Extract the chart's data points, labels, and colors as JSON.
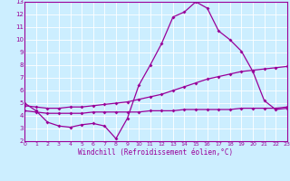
{
  "xlabel": "Windchill (Refroidissement éolien,°C)",
  "background_color": "#cceeff",
  "line_color": "#990099",
  "grid_color": "#ffffff",
  "xlim": [
    0,
    23
  ],
  "ylim": [
    2,
    13
  ],
  "xticks": [
    0,
    1,
    2,
    3,
    4,
    5,
    6,
    7,
    8,
    9,
    10,
    11,
    12,
    13,
    14,
    15,
    16,
    17,
    18,
    19,
    20,
    21,
    22,
    23
  ],
  "yticks": [
    2,
    3,
    4,
    5,
    6,
    7,
    8,
    9,
    10,
    11,
    12,
    13
  ],
  "series": {
    "line1_x": [
      0,
      1,
      2,
      3,
      4,
      5,
      6,
      7,
      8,
      9,
      10,
      11,
      12,
      13,
      14,
      15,
      16,
      17,
      18,
      19,
      20,
      21,
      22,
      23
    ],
    "line1_y": [
      5.0,
      4.4,
      3.5,
      3.2,
      3.1,
      3.3,
      3.4,
      3.2,
      2.2,
      3.8,
      6.4,
      8.0,
      9.7,
      11.8,
      12.2,
      13.0,
      12.5,
      10.7,
      10.0,
      9.1,
      7.5,
      5.2,
      4.5,
      4.6
    ],
    "line2_x": [
      0,
      1,
      2,
      3,
      4,
      5,
      6,
      7,
      8,
      9,
      10,
      11,
      12,
      13,
      14,
      15,
      16,
      17,
      18,
      19,
      20,
      21,
      22,
      23
    ],
    "line2_y": [
      4.8,
      4.7,
      4.6,
      4.6,
      4.7,
      4.7,
      4.8,
      4.9,
      5.0,
      5.1,
      5.3,
      5.5,
      5.7,
      6.0,
      6.3,
      6.6,
      6.9,
      7.1,
      7.3,
      7.5,
      7.6,
      7.7,
      7.8,
      7.9
    ],
    "line3_x": [
      0,
      1,
      2,
      3,
      4,
      5,
      6,
      7,
      8,
      9,
      10,
      11,
      12,
      13,
      14,
      15,
      16,
      17,
      18,
      19,
      20,
      21,
      22,
      23
    ],
    "line3_y": [
      4.4,
      4.3,
      4.2,
      4.2,
      4.2,
      4.2,
      4.3,
      4.3,
      4.3,
      4.3,
      4.3,
      4.4,
      4.4,
      4.4,
      4.5,
      4.5,
      4.5,
      4.5,
      4.5,
      4.6,
      4.6,
      4.6,
      4.6,
      4.7
    ]
  }
}
